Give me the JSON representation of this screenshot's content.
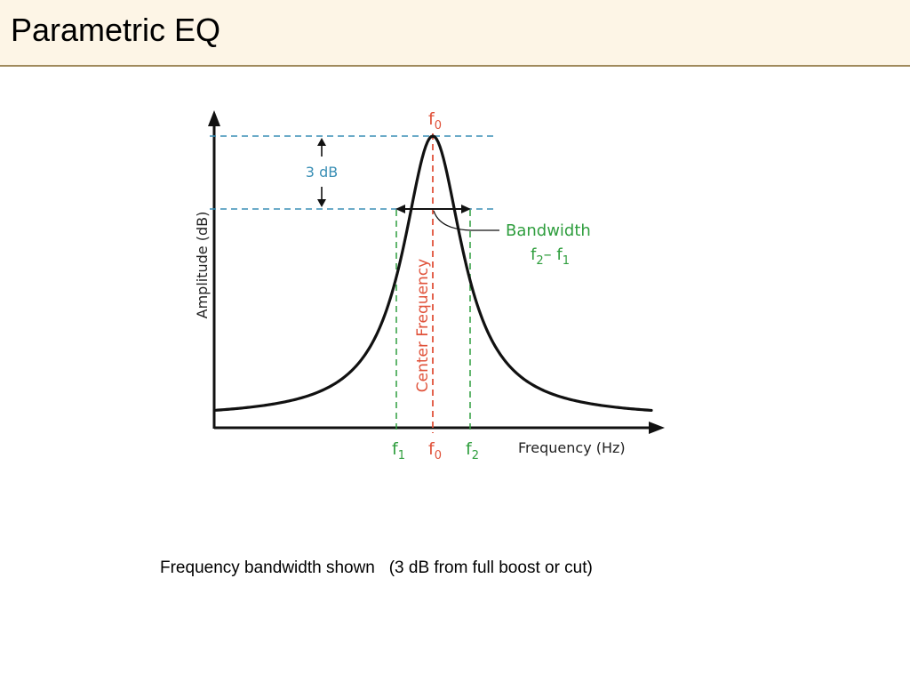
{
  "slide": {
    "title": "Parametric EQ",
    "caption": "Frequency bandwidth shown   (3 dB from full boost or cut)"
  },
  "diagram": {
    "y_axis_label": "Amplitude (dB)",
    "x_axis_label": "Frequency (Hz)",
    "db_marker": "3 dB",
    "bandwidth": {
      "label": "Bandwidth",
      "formula_f": "f",
      "formula_sub_a": "2",
      "formula_minus": "– f",
      "formula_sub_b": "1"
    },
    "center_label": "Center Frequency",
    "top_marker": {
      "letter": "f",
      "sub": "0"
    },
    "ticks": [
      {
        "letter": "f",
        "sub": "1"
      },
      {
        "letter": "f",
        "sub": "0"
      },
      {
        "letter": "f",
        "sub": "2"
      }
    ],
    "colors": {
      "curve": "#111111",
      "blue": "#3a8fb5",
      "green": "#2f9e3e",
      "red": "#e0523a",
      "header_bg": "#fdf5e6",
      "header_rule": "#a08a5c"
    }
  }
}
